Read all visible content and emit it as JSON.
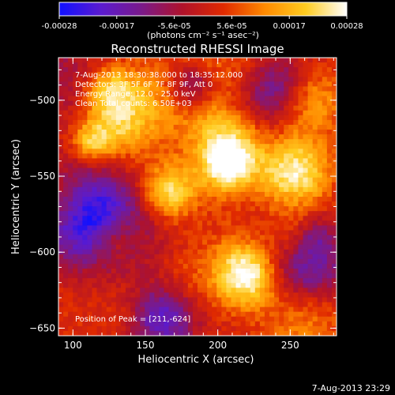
{
  "colorbar": {
    "ticks": [
      "-0.00028",
      "-0.00017",
      "-5.6e-05",
      "5.6e-05",
      "0.00017",
      "0.00028"
    ],
    "unit_label": "(photons cm⁻² s⁻¹ asec⁻²)",
    "range": [
      -0.00028,
      0.00028
    ],
    "colormap_stops": [
      "#1010ff",
      "#5a1bd0",
      "#7a1a8a",
      "#b0122a",
      "#e02a00",
      "#ff8a00",
      "#ffcc20",
      "#ffffff"
    ]
  },
  "chart_data": {
    "type": "heatmap",
    "title": "Reconstructed RHESSI Image",
    "xlabel": "Heliocentric X (arcsec)",
    "ylabel": "Heliocentric Y (arcsec)",
    "xlim": [
      90,
      282
    ],
    "ylim": [
      -655,
      -472
    ],
    "x_ticks": [
      100,
      150,
      200,
      250
    ],
    "y_ticks": [
      -500,
      -550,
      -600,
      -650
    ],
    "x_tick_labels": [
      "100",
      "150",
      "200",
      "250"
    ],
    "y_tick_labels": [
      "−500",
      "−550",
      "−600",
      "−650"
    ],
    "annotations": [
      "7-Aug-2013 18:30:38.000 to 18:35:12.000",
      "Detectors: 3F 5F 6F 7F 8F 9F, Att 0",
      "Energy Range: 12.0 - 25.0 keV",
      "Clean     Total counts: 6.50E+03"
    ],
    "peak_label": "Position of Peak = [211,-624]",
    "peak": [
      211,
      -624
    ],
    "value_range": [
      -0.00028,
      0.00028
    ]
  },
  "footer": {
    "timestamp": "7-Aug-2013 23:29"
  }
}
